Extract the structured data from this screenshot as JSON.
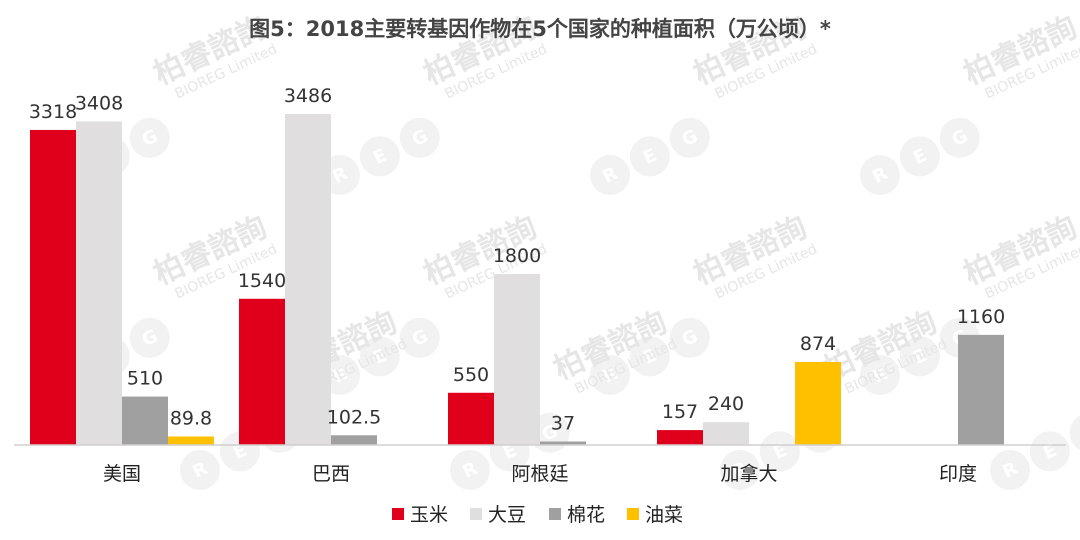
{
  "watermark": {
    "brand_cn": "柏睿諮詢",
    "brand_en": "BIOREG Limited",
    "logo_letters": [
      "R",
      "E",
      "G"
    ]
  },
  "chart_data": {
    "type": "bar",
    "title": "图5：2018主要转基因作物在5个国家的种植面积（万公顷）*",
    "categories": [
      "美国",
      "巴西",
      "阿根廷",
      "加拿大",
      "印度"
    ],
    "series": [
      {
        "name": "玉米",
        "color": "#e0001b",
        "values": [
          3318,
          1540,
          550,
          157,
          null
        ],
        "labels": [
          "3318",
          "1540",
          "550",
          "157",
          ""
        ]
      },
      {
        "name": "大豆",
        "color": "#e0dede",
        "values": [
          3408,
          3486,
          1800,
          240,
          null
        ],
        "labels": [
          "3408",
          "3486",
          "1800",
          "240",
          ""
        ]
      },
      {
        "name": "棉花",
        "color": "#a0a0a0",
        "values": [
          510,
          102.5,
          37,
          null,
          1160
        ],
        "labels": [
          "510",
          "102.5",
          "37",
          "",
          "1160"
        ]
      },
      {
        "name": "油菜",
        "color": "#ffc000",
        "values": [
          89.8,
          null,
          null,
          874,
          null
        ],
        "labels": [
          "89.8",
          "",
          "",
          "874",
          ""
        ]
      }
    ],
    "ylim": [
      0,
      3486
    ],
    "grid": false,
    "legend_position": "bottom"
  }
}
